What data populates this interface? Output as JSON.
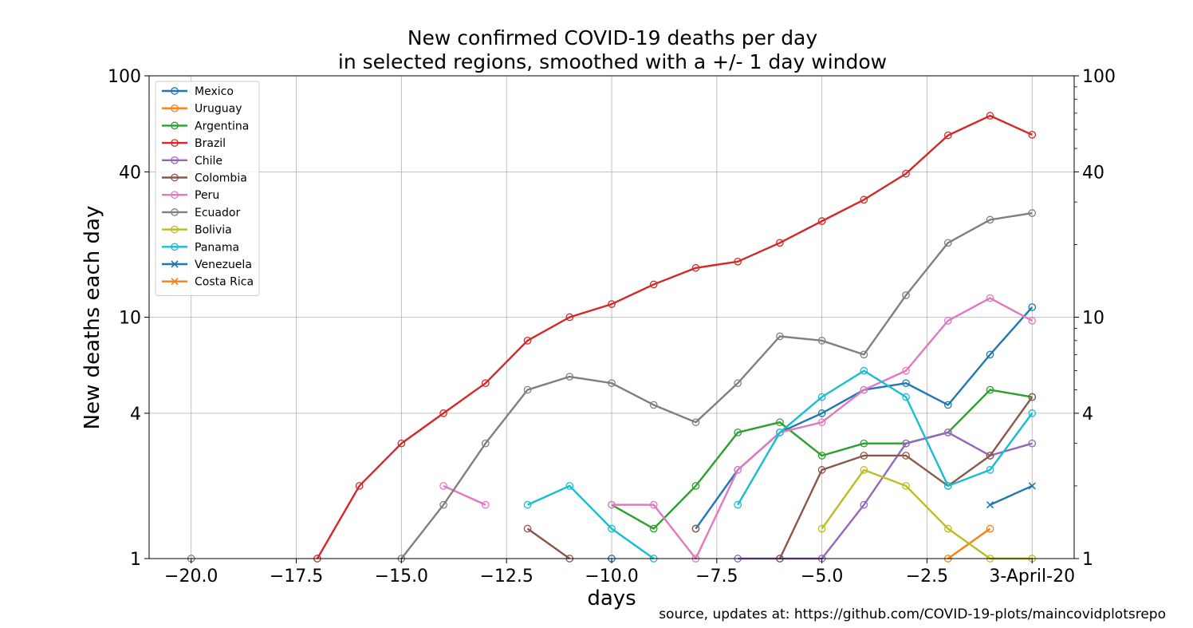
{
  "chart_data": {
    "type": "line",
    "title": "New confirmed COVID-19 deaths per day",
    "subtitle": "in selected regions, smoothed with a +/- 1 day window",
    "xlabel": "days",
    "ylabel": "New deaths each day",
    "x_scale": "linear",
    "y_scale": "log",
    "xlim": [
      -21,
      1
    ],
    "ylim": [
      1,
      100
    ],
    "x_ticks": [
      -20,
      -17.5,
      -15,
      -12.5,
      -10,
      -7.5,
      -5,
      -2.5,
      0
    ],
    "x_tick_labels": [
      "−20.0",
      "−17.5",
      "−15.0",
      "−12.5",
      "−10.0",
      "−7.5",
      "−5.0",
      "−2.5",
      "3-April-20"
    ],
    "y_ticks": [
      1,
      4,
      10,
      40,
      100
    ],
    "y_tick_labels": [
      "1",
      "4",
      "10",
      "40",
      "100"
    ],
    "grid": true,
    "legend_position": "top-left",
    "source_note": "source, updates at: https://github.com/COVID-19-plots/maincovidplotsrepo",
    "series": [
      {
        "name": "Mexico",
        "color": "#1f77b4",
        "marker": "circle",
        "x": [
          -10,
          -8,
          -7,
          -6,
          -5,
          -4,
          -3,
          -2,
          -1,
          0
        ],
        "y": [
          1,
          1.33,
          2.33,
          3.33,
          4,
          5,
          5.33,
          4.33,
          7,
          11
        ]
      },
      {
        "name": "Uruguay",
        "color": "#ff7f0e",
        "marker": "circle",
        "x": [
          -2,
          -1
        ],
        "y": [
          1,
          1.33
        ]
      },
      {
        "name": "Argentina",
        "color": "#2ca02c",
        "marker": "circle",
        "x": [
          -10,
          -9,
          -8,
          -7,
          -6,
          -5,
          -4,
          -3,
          -2,
          -1,
          0
        ],
        "y": [
          1.67,
          1.33,
          2,
          3.33,
          3.67,
          2.67,
          3,
          3,
          3.33,
          5,
          4.67
        ]
      },
      {
        "name": "Brazil",
        "color": "#d62728",
        "marker": "circle",
        "x": [
          -17,
          -16,
          -15,
          -14,
          -13,
          -12,
          -11,
          -10,
          -9,
          -8,
          -7,
          -6,
          -5,
          -4,
          -3,
          -2,
          -1,
          0
        ],
        "y": [
          1,
          2,
          3,
          4,
          5.33,
          8,
          10,
          11.33,
          13.67,
          16,
          17,
          20.33,
          25,
          30.67,
          39.33,
          56.67,
          68.33,
          57
        ]
      },
      {
        "name": "Chile",
        "color": "#9467bd",
        "marker": "circle",
        "x": [
          -7,
          -6,
          -5,
          -4,
          -3,
          -2,
          -1,
          0
        ],
        "y": [
          1,
          1,
          1,
          1.67,
          3,
          3.33,
          2.67,
          3
        ]
      },
      {
        "name": "Colombia",
        "color": "#8c564b",
        "marker": "circle",
        "x": [
          -12,
          -11,
          -8,
          -6,
          -5,
          -4,
          -3,
          -2,
          -1,
          0
        ],
        "y": [
          1.33,
          1,
          1.33,
          1,
          2.33,
          2.67,
          2.67,
          2,
          2.67,
          4.67
        ]
      },
      {
        "name": "Peru",
        "color": "#e377c2",
        "marker": "circle",
        "x": [
          -14,
          -13,
          -10,
          -9,
          -8,
          -7,
          -6,
          -5,
          -4,
          -3,
          -2,
          -1,
          0
        ],
        "y": [
          2,
          1.67,
          1.67,
          1.67,
          1,
          2.33,
          3.33,
          3.67,
          5,
          6,
          9.67,
          12,
          9.67
        ]
      },
      {
        "name": "Ecuador",
        "color": "#7f7f7f",
        "marker": "circle",
        "x": [
          -20,
          -15,
          -14,
          -13,
          -12,
          -11,
          -10,
          -9,
          -8,
          -7,
          -6,
          -5,
          -4,
          -3,
          -2,
          -1,
          0
        ],
        "y": [
          1,
          1,
          1.67,
          3,
          5,
          5.67,
          5.33,
          4.33,
          3.67,
          5.33,
          8.33,
          8,
          7,
          12.33,
          20.33,
          25.33,
          27
        ]
      },
      {
        "name": "Bolivia",
        "color": "#bcbd22",
        "marker": "circle",
        "x": [
          -5,
          -4,
          -3,
          -2,
          -1,
          0
        ],
        "y": [
          1.33,
          2.33,
          2,
          1.33,
          1,
          1
        ]
      },
      {
        "name": "Panama",
        "color": "#17becf",
        "marker": "circle",
        "x": [
          -12,
          -11,
          -10,
          -9,
          -7,
          -6,
          -5,
          -4,
          -3,
          -2,
          -1,
          0
        ],
        "y": [
          1.67,
          2,
          1.33,
          1,
          1.67,
          3.33,
          4.67,
          6,
          4.67,
          2,
          2.33,
          4
        ]
      },
      {
        "name": "Venezuela",
        "color": "#1f77b4",
        "marker": "x",
        "x": [
          -1,
          0
        ],
        "y": [
          1.67,
          2
        ]
      },
      {
        "name": "Costa Rica",
        "color": "#ff7f0e",
        "marker": "x",
        "x": [],
        "y": []
      }
    ]
  }
}
